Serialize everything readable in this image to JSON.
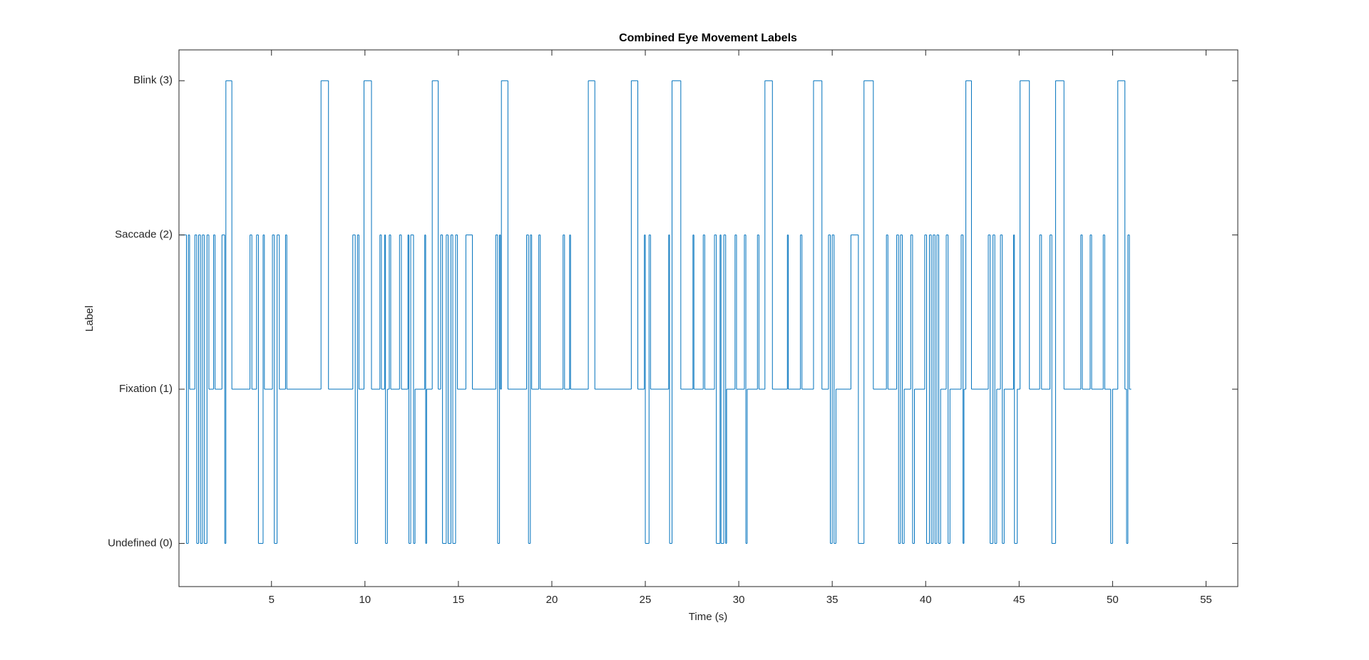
{
  "chart_data": {
    "type": "stairs",
    "title": "Combined Eye Movement Labels",
    "x_label": "Time (s)",
    "y_label": "Label",
    "color": "#0072bd",
    "xlim": [
      0.05,
      56.7
    ],
    "ylim": [
      -0.28,
      3.2
    ],
    "xticks": [
      5,
      10,
      15,
      20,
      25,
      30,
      35,
      40,
      45,
      50,
      55
    ],
    "yticks": [
      {
        "value": 0,
        "label": "Undefined (0)"
      },
      {
        "value": 1,
        "label": "Fixation (1)"
      },
      {
        "value": 2,
        "label": "Saccade (2)"
      },
      {
        "value": 3,
        "label": "Blink (3)"
      }
    ],
    "edges": [
      0.1,
      0.45,
      0.55,
      0.62,
      0.9,
      1.0,
      1.1,
      1.2,
      1.3,
      1.4,
      1.55,
      1.65,
      1.9,
      1.98,
      2.35,
      2.5,
      2.56,
      2.88,
      3.85,
      3.95,
      4.2,
      4.3,
      4.55,
      4.62,
      5.05,
      5.15,
      5.3,
      5.42,
      5.75,
      5.82,
      7.65,
      8.05,
      9.35,
      9.48,
      9.6,
      9.68,
      9.95,
      10.35,
      10.8,
      10.88,
      11.05,
      11.1,
      11.2,
      11.3,
      11.38,
      11.85,
      11.95,
      12.3,
      12.35,
      12.45,
      12.6,
      12.68,
      13.2,
      13.25,
      13.3,
      13.6,
      13.92,
      14.05,
      14.15,
      14.35,
      14.45,
      14.6,
      14.7,
      14.85,
      14.95,
      15.4,
      15.75,
      17.0,
      17.1,
      17.2,
      17.25,
      17.3,
      17.65,
      18.65,
      18.75,
      18.85,
      18.92,
      19.3,
      19.38,
      20.6,
      20.68,
      20.95,
      21.0,
      21.95,
      22.3,
      24.25,
      24.6,
      24.95,
      25.0,
      25.2,
      25.28,
      26.25,
      26.3,
      26.43,
      26.9,
      27.55,
      27.6,
      28.1,
      28.18,
      28.7,
      28.8,
      29.0,
      29.05,
      29.2,
      29.3,
      29.35,
      29.8,
      29.88,
      30.3,
      30.38,
      30.45,
      31.0,
      31.08,
      31.4,
      31.8,
      32.6,
      32.65,
      33.3,
      33.38,
      34.0,
      34.45,
      34.8,
      34.9,
      35.0,
      35.1,
      35.2,
      36.0,
      36.4,
      36.7,
      37.2,
      37.9,
      37.98,
      38.45,
      38.55,
      38.65,
      38.75,
      38.85,
      39.2,
      39.3,
      39.4,
      39.95,
      40.05,
      40.2,
      40.3,
      40.4,
      40.5,
      40.6,
      40.7,
      40.8,
      41.1,
      41.2,
      41.3,
      41.9,
      42.0,
      42.05,
      42.15,
      42.45,
      43.35,
      43.45,
      43.6,
      43.7,
      43.8,
      44.0,
      44.1,
      44.2,
      44.7,
      44.75,
      44.9,
      45.05,
      45.55,
      46.1,
      46.2,
      46.65,
      46.75,
      46.95,
      47.4,
      48.3,
      48.38,
      48.8,
      48.88,
      49.5,
      49.58,
      49.9,
      50.0,
      50.28,
      50.66,
      50.75,
      50.82,
      50.9,
      51.0
    ],
    "values": [
      2,
      0,
      2,
      1,
      2,
      0,
      2,
      0,
      2,
      0,
      2,
      1,
      2,
      1,
      2,
      0,
      3,
      1,
      2,
      1,
      2,
      0,
      2,
      1,
      2,
      0,
      2,
      1,
      2,
      1,
      3,
      1,
      2,
      0,
      2,
      1,
      3,
      1,
      2,
      1,
      2,
      0,
      1,
      2,
      1,
      2,
      1,
      2,
      0,
      2,
      0,
      1,
      2,
      0,
      1,
      3,
      1,
      2,
      0,
      2,
      0,
      2,
      0,
      2,
      1,
      2,
      1,
      2,
      0,
      2,
      1,
      3,
      1,
      2,
      0,
      2,
      1,
      2,
      1,
      2,
      1,
      2,
      1,
      3,
      1,
      3,
      1,
      2,
      0,
      2,
      1,
      2,
      0,
      3,
      1,
      2,
      1,
      2,
      1,
      2,
      0,
      2,
      0,
      2,
      0,
      1,
      2,
      1,
      2,
      0,
      1,
      2,
      1,
      3,
      1,
      2,
      1,
      2,
      1,
      3,
      1,
      2,
      0,
      2,
      0,
      1,
      2,
      0,
      3,
      1,
      2,
      1,
      2,
      0,
      2,
      0,
      1,
      2,
      0,
      1,
      2,
      0,
      2,
      0,
      2,
      0,
      2,
      0,
      1,
      2,
      0,
      1,
      2,
      0,
      1,
      3,
      1,
      2,
      0,
      2,
      0,
      1,
      2,
      0,
      1,
      2,
      0,
      1,
      3,
      1,
      2,
      1,
      2,
      0,
      3,
      1,
      2,
      1,
      2,
      1,
      2,
      1,
      0,
      1,
      3,
      1,
      0,
      2,
      1
    ]
  }
}
